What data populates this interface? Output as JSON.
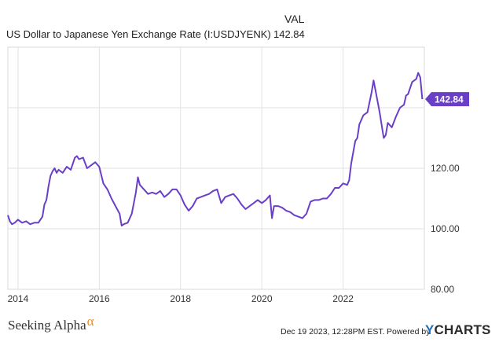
{
  "header": {
    "col_label": "VAL",
    "series_name": "US Dollar to Japanese Yen Exchange Rate (I:USDJYENK)",
    "current_value": "142.84"
  },
  "footer": {
    "brand": "Seeking Alpha",
    "brand_mark": "α",
    "date": "Dec 19 2023, 12:28PM EST.",
    "powered_by": "Powered by",
    "ycharts_y": "Y",
    "ycharts_rest": "CHARTS"
  },
  "chart_data": {
    "type": "line",
    "title": "US Dollar to Japanese Yen Exchange Rate (I:USDJYENK)",
    "last_value_label": "142.84",
    "x_ticks": [
      "2014",
      "2016",
      "2018",
      "2020",
      "2022"
    ],
    "y_ticks": [
      "80.00",
      "100.00",
      "120.00"
    ],
    "ylim": [
      80,
      160
    ],
    "xlim": [
      2013.75,
      2024.0
    ],
    "grid": true,
    "line_color": "#6a3fc7",
    "series": [
      {
        "x": [
          2013.75,
          2013.8,
          2013.85,
          2013.92,
          2014.0,
          2014.1,
          2014.2,
          2014.3,
          2014.4,
          2014.5,
          2014.55,
          2014.6,
          2014.65,
          2014.7,
          2014.75,
          2014.8,
          2014.85,
          2014.9,
          2014.95,
          2015.0,
          2015.1,
          2015.2,
          2015.3,
          2015.4,
          2015.45,
          2015.5,
          2015.6,
          2015.7,
          2015.8,
          2015.9,
          2016.0,
          2016.1,
          2016.2,
          2016.3,
          2016.4,
          2016.5,
          2016.55,
          2016.6,
          2016.7,
          2016.8,
          2016.9,
          2016.95,
          2017.0,
          2017.1,
          2017.2,
          2017.3,
          2017.4,
          2017.5,
          2017.6,
          2017.7,
          2017.8,
          2017.9,
          2018.0,
          2018.1,
          2018.2,
          2018.3,
          2018.4,
          2018.5,
          2018.6,
          2018.7,
          2018.8,
          2018.9,
          2019.0,
          2019.1,
          2019.2,
          2019.3,
          2019.4,
          2019.5,
          2019.6,
          2019.7,
          2019.8,
          2019.9,
          2020.0,
          2020.1,
          2020.2,
          2020.25,
          2020.3,
          2020.4,
          2020.5,
          2020.6,
          2020.7,
          2020.8,
          2020.9,
          2021.0,
          2021.1,
          2021.2,
          2021.3,
          2021.4,
          2021.5,
          2021.6,
          2021.7,
          2021.8,
          2021.9,
          2022.0,
          2022.1,
          2022.15,
          2022.2,
          2022.3,
          2022.35,
          2022.4,
          2022.5,
          2022.6,
          2022.7,
          2022.75,
          2022.8,
          2022.9,
          2023.0,
          2023.05,
          2023.1,
          2023.2,
          2023.3,
          2023.4,
          2023.5,
          2023.55,
          2023.6,
          2023.7,
          2023.8,
          2023.85,
          2023.9,
          2023.95
        ],
        "y": [
          104.5,
          102.5,
          101.5,
          102.0,
          103.0,
          102.0,
          102.5,
          101.5,
          102.0,
          102.0,
          103.0,
          104.0,
          108.0,
          109.5,
          114.0,
          117.5,
          119.0,
          120.0,
          118.5,
          119.5,
          118.5,
          120.5,
          119.5,
          123.5,
          124.0,
          123.0,
          123.5,
          120.0,
          121.0,
          122.0,
          120.5,
          115.0,
          113.0,
          110.0,
          107.5,
          105.0,
          101.0,
          101.5,
          102.0,
          105.0,
          112.0,
          117.0,
          114.5,
          113.0,
          111.5,
          112.0,
          111.5,
          112.5,
          110.5,
          111.5,
          113.0,
          113.0,
          111.0,
          108.0,
          106.0,
          107.5,
          110.0,
          110.5,
          111.0,
          111.5,
          112.5,
          113.0,
          108.5,
          110.5,
          111.0,
          111.5,
          110.0,
          108.0,
          106.5,
          107.5,
          108.5,
          109.5,
          108.5,
          109.5,
          111.0,
          103.5,
          107.5,
          107.5,
          107.0,
          106.0,
          105.5,
          104.5,
          104.0,
          103.5,
          105.0,
          109.0,
          109.5,
          109.5,
          110.0,
          110.0,
          111.5,
          113.5,
          113.5,
          115.0,
          114.5,
          116.0,
          121.5,
          129.0,
          130.0,
          134.5,
          137.5,
          138.5,
          145.0,
          149.0,
          145.5,
          138.5,
          130.0,
          131.0,
          135.0,
          133.5,
          137.0,
          140.0,
          141.0,
          144.0,
          144.5,
          148.5,
          149.5,
          151.5,
          150.0,
          142.84
        ]
      }
    ]
  }
}
